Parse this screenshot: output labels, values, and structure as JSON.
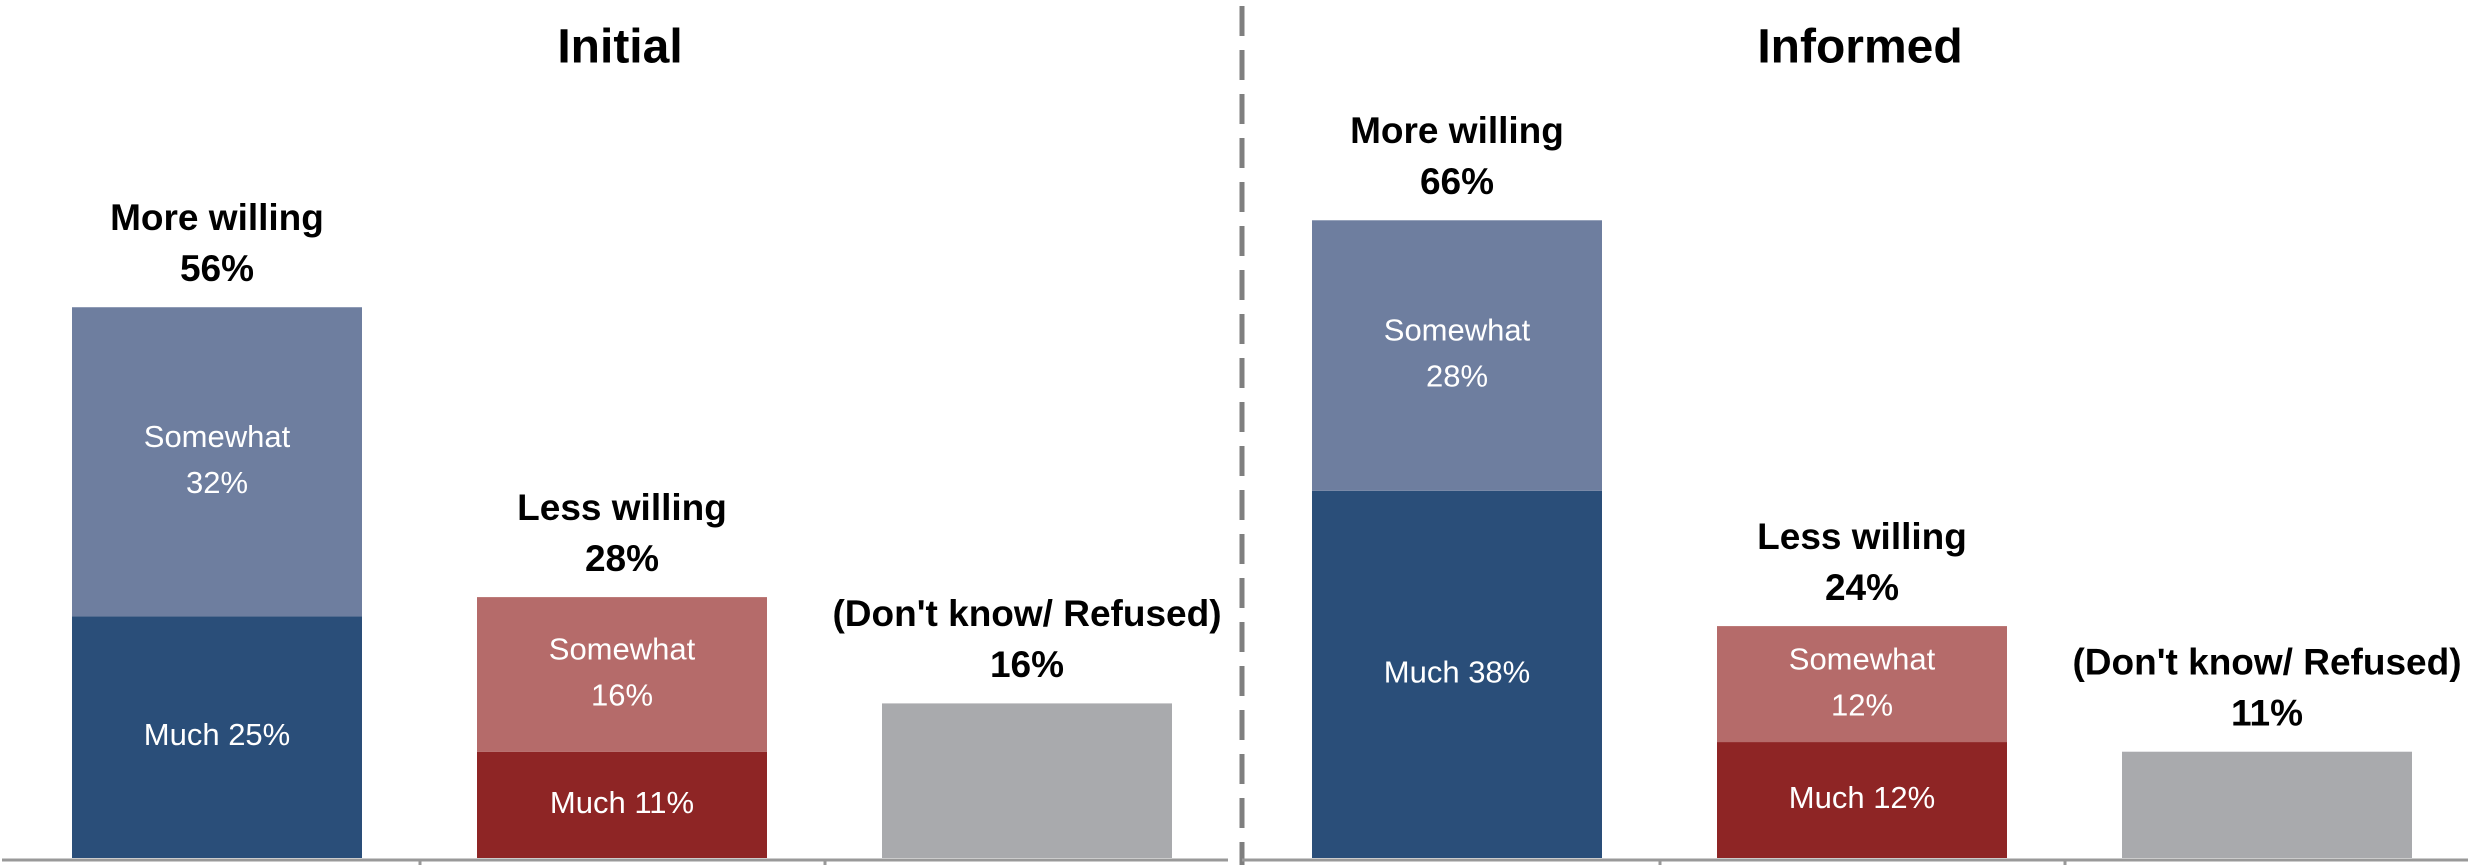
{
  "chart_data": [
    {
      "type": "stacked_bar",
      "title": "Initial",
      "categories": [
        "More willing",
        "Less willing",
        "(Don't know/ Refused)"
      ],
      "totals": [
        56,
        28,
        16
      ],
      "total_labels": [
        "56%",
        "28%",
        "16%"
      ],
      "series": [
        {
          "name": "Much",
          "colors": [
            "#2a4e79",
            "#8e2525",
            null
          ],
          "values": [
            25,
            11,
            null
          ],
          "value_labels": [
            "25%",
            "11%",
            null
          ]
        },
        {
          "name": "Somewhat",
          "colors": [
            "#6e7e9f",
            "#b56b6a",
            null
          ],
          "values": [
            32,
            16,
            null
          ],
          "value_labels": [
            "32%",
            "16%",
            null
          ]
        },
        {
          "colors": [
            null,
            null,
            "#a9aaad"
          ],
          "values": [
            null,
            null,
            16
          ]
        }
      ],
      "ylim": [
        0,
        80
      ]
    },
    {
      "type": "stacked_bar",
      "title": "Informed",
      "categories": [
        "More willing",
        "Less willing",
        "(Don't know/ Refused)"
      ],
      "totals": [
        66,
        24,
        11
      ],
      "total_labels": [
        "66%",
        "24%",
        "11%"
      ],
      "series": [
        {
          "name": "Much",
          "colors": [
            "#2a4e79",
            "#8e2525",
            null
          ],
          "values": [
            38,
            12,
            null
          ],
          "value_labels": [
            "38%",
            "12%",
            null
          ]
        },
        {
          "name": "Somewhat",
          "colors": [
            "#6e7e9f",
            "#b56b6a",
            null
          ],
          "values": [
            28,
            12,
            null
          ],
          "value_labels": [
            "28%",
            "12%",
            null
          ]
        },
        {
          "colors": [
            null,
            null,
            "#a9aaad"
          ],
          "values": [
            null,
            null,
            11
          ]
        }
      ],
      "ylim": [
        0,
        80
      ]
    }
  ]
}
